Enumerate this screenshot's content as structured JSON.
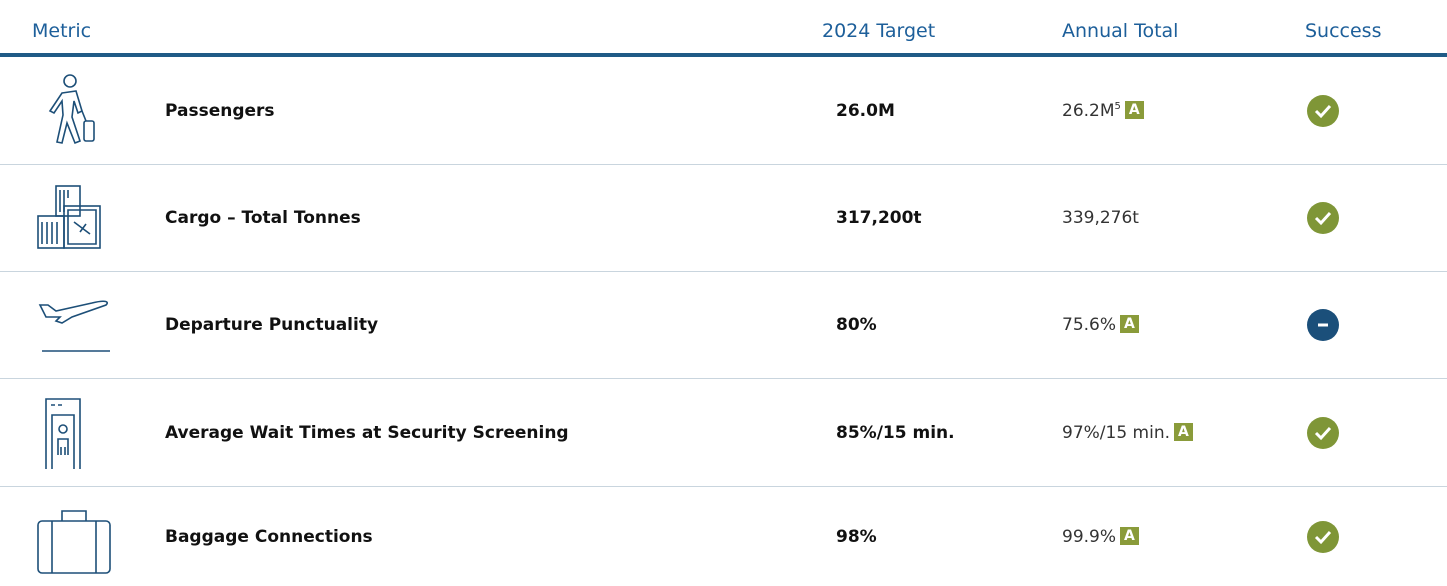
{
  "table": {
    "header": [
      "Metric",
      "2024 Target",
      "Annual Total",
      "Success"
    ],
    "rows": [
      {
        "metric": "Passengers",
        "target": "26.0M",
        "total": "26.2M",
        "note": "5",
        "badge": "A"
      },
      {
        "metric": "Cargo – Total Tonnes",
        "target": "317,200t",
        "total": "339,276t"
      },
      {
        "metric": "Departure Punctuality",
        "target": "80%",
        "total": "75.6%",
        "badge": "A"
      },
      {
        "metric": "Average Wait Times at Security Screening",
        "target": "85%/15 min.",
        "total": "97%/15 min.",
        "badge": "A"
      },
      {
        "metric": "Baggage Connections",
        "target": "98%",
        "total": "99.9%",
        "badge": "A"
      }
    ]
  }
}
